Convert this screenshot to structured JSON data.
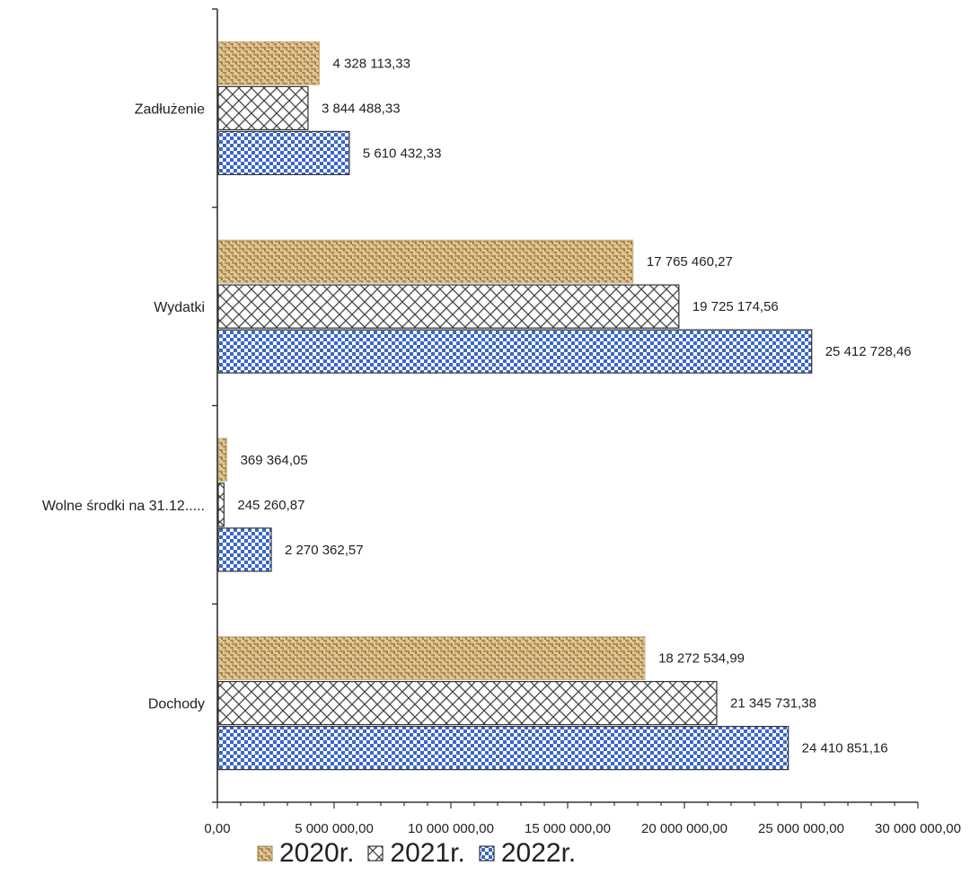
{
  "chart_data": {
    "type": "bar",
    "orientation": "horizontal",
    "categories": [
      "Dochody",
      "Wolne środki na 31.12.....",
      "Wydatki",
      "Zadłużenie"
    ],
    "series": [
      {
        "name": "2020r.",
        "values": [
          18272534.99,
          369364.05,
          17765460.27,
          4328113.33
        ],
        "labels": [
          "18 272 534,99",
          "369 364,05",
          "17 765 460,27",
          "4 328 113,33"
        ]
      },
      {
        "name": "2021r.",
        "values": [
          21345731.38,
          245260.87,
          19725174.56,
          3844488.33
        ],
        "labels": [
          "21 345 731,38",
          "245 260,87",
          "19 725 174,56",
          "3 844 488,33"
        ]
      },
      {
        "name": "2022r.",
        "values": [
          24410851.16,
          2270362.57,
          25412728.46,
          5610432.33
        ],
        "labels": [
          "24 410 851,16",
          "2 270 362,57",
          "25 412 728,46",
          "5 610 432,33"
        ]
      }
    ],
    "xlim": [
      0,
      30000000
    ],
    "x_ticks": [
      0,
      5000000,
      10000000,
      15000000,
      20000000,
      25000000,
      30000000
    ],
    "x_tick_labels": [
      "0,00",
      "5 000 000,00",
      "10 000 000,00",
      "15 000 000,00",
      "20 000 000,00",
      "25 000 000,00",
      "30 000 000,00"
    ],
    "legend_position": "bottom",
    "grid": false
  },
  "colors": {
    "s2020": "#c9a86a",
    "s2021": "#555555",
    "s2022": "#3a67c8"
  }
}
